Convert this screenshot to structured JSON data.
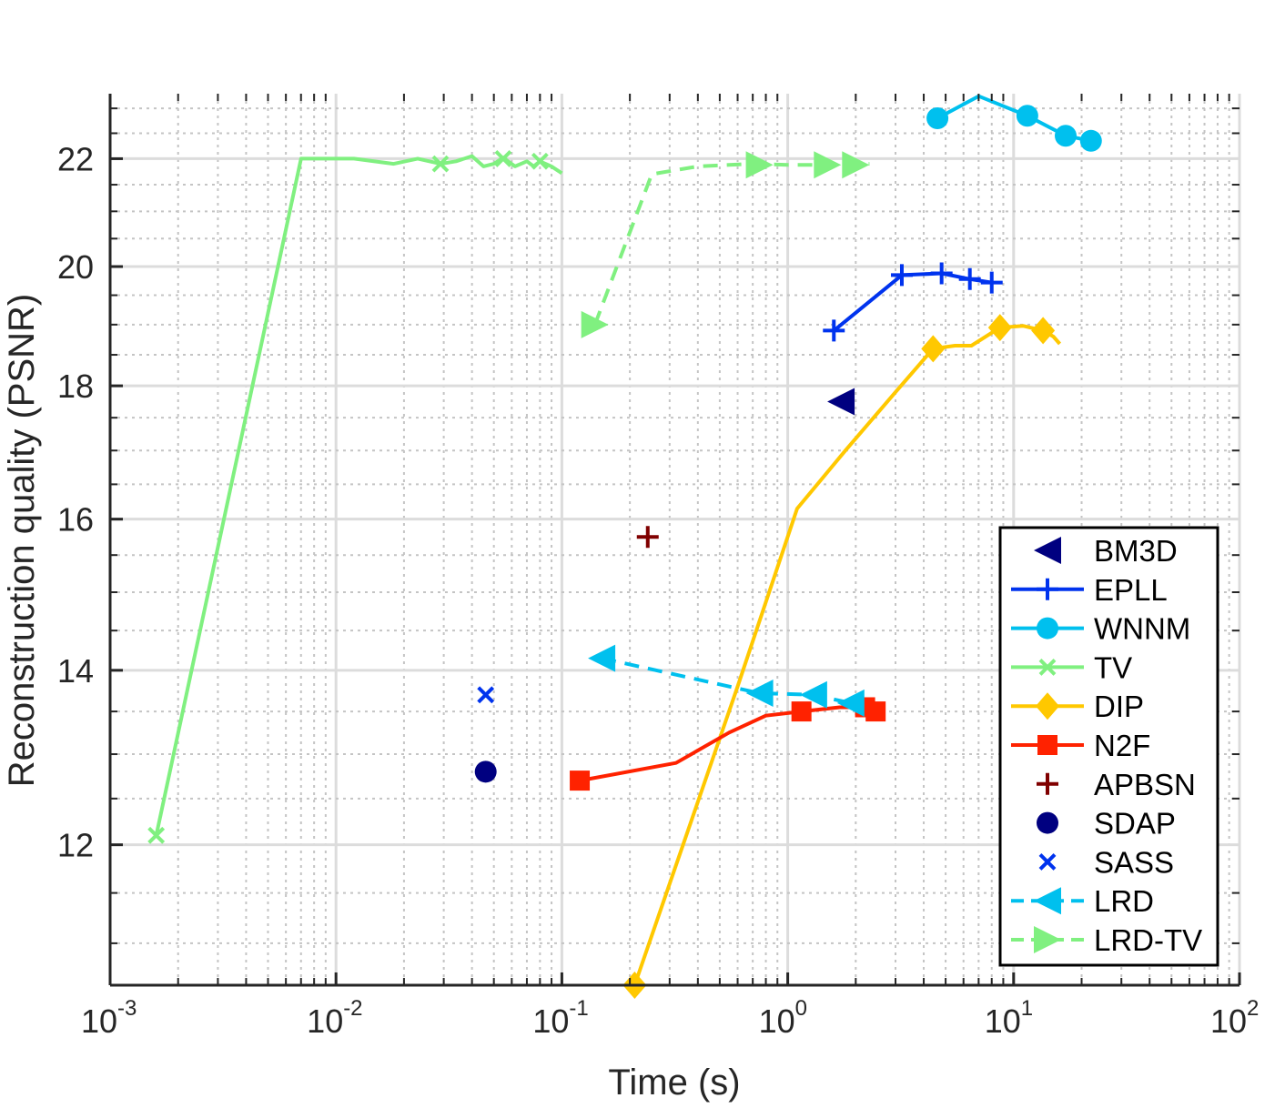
{
  "chart_data": {
    "type": "line",
    "title": "",
    "xlabel": "Time (s)",
    "ylabel": "Reconstruction quality (PSNR)",
    "xscale": "log",
    "yscale": "log",
    "xlim": [
      0.001,
      100
    ],
    "ylim": [
      10.6,
      23.3
    ],
    "xticks": [
      {
        "base": "10",
        "exp": "-3"
      },
      {
        "base": "10",
        "exp": "-2"
      },
      {
        "base": "10",
        "exp": "-1"
      },
      {
        "base": "10",
        "exp": "0"
      },
      {
        "base": "10",
        "exp": "1"
      },
      {
        "base": "10",
        "exp": "2"
      }
    ],
    "yticks": [
      "12",
      "14",
      "16",
      "18",
      "20",
      "22"
    ],
    "grid": true,
    "legend_position": "bottom-right",
    "series": [
      {
        "name": "BM3D",
        "color": "#000080",
        "style": "none",
        "marker": "triangle-left",
        "points": [
          [
            1.72,
            17.75
          ]
        ],
        "marker_points": [
          [
            1.72,
            17.75
          ]
        ]
      },
      {
        "name": "EPLL",
        "color": "#0033ee",
        "style": "solid",
        "marker": "plus",
        "points": [
          [
            1.6,
            18.9
          ],
          [
            3.2,
            19.85
          ],
          [
            4.8,
            19.88
          ],
          [
            6.4,
            19.78
          ],
          [
            8.0,
            19.72
          ]
        ],
        "marker_points": [
          [
            1.6,
            18.9
          ],
          [
            3.2,
            19.85
          ],
          [
            4.8,
            19.88
          ],
          [
            6.4,
            19.78
          ],
          [
            8.0,
            19.72
          ]
        ]
      },
      {
        "name": "WNNM",
        "color": "#00c0ee",
        "style": "solid",
        "marker": "circle",
        "points": [
          [
            4.6,
            22.8
          ],
          [
            7.0,
            23.25
          ],
          [
            11.5,
            22.85
          ],
          [
            17.0,
            22.45
          ],
          [
            22.0,
            22.35
          ]
        ],
        "marker_points": [
          [
            4.6,
            22.8
          ],
          [
            11.5,
            22.85
          ],
          [
            17.0,
            22.45
          ],
          [
            22.0,
            22.35
          ]
        ]
      },
      {
        "name": "TV",
        "color": "#80f080",
        "style": "solid",
        "marker": "x",
        "points": [
          [
            0.0016,
            12.1
          ],
          [
            0.007,
            22.0
          ],
          [
            0.012,
            22.0
          ],
          [
            0.018,
            21.9
          ],
          [
            0.023,
            22.0
          ],
          [
            0.029,
            21.9
          ],
          [
            0.034,
            21.95
          ],
          [
            0.04,
            22.05
          ],
          [
            0.045,
            21.85
          ],
          [
            0.05,
            21.9
          ],
          [
            0.055,
            22.02
          ],
          [
            0.062,
            21.85
          ],
          [
            0.07,
            21.95
          ],
          [
            0.075,
            21.85
          ],
          [
            0.08,
            21.95
          ],
          [
            0.09,
            21.85
          ],
          [
            0.1,
            21.72
          ]
        ],
        "marker_points": [
          [
            0.0016,
            12.1
          ],
          [
            0.029,
            21.9
          ],
          [
            0.055,
            22.0
          ],
          [
            0.08,
            21.95
          ]
        ]
      },
      {
        "name": "DIP",
        "color": "#ffc800",
        "style": "solid",
        "marker": "diamond",
        "points": [
          [
            0.21,
            10.6
          ],
          [
            0.6,
            13.8
          ],
          [
            1.1,
            16.15
          ],
          [
            1.8,
            17.0
          ],
          [
            3.0,
            17.9
          ],
          [
            4.4,
            18.6
          ],
          [
            5.5,
            18.65
          ],
          [
            6.5,
            18.65
          ],
          [
            8.7,
            18.95
          ],
          [
            11.0,
            18.98
          ],
          [
            13.5,
            18.9
          ],
          [
            15.0,
            18.8
          ],
          [
            16.0,
            18.68
          ]
        ],
        "marker_points": [
          [
            0.21,
            10.6
          ],
          [
            4.4,
            18.6
          ],
          [
            8.7,
            18.95
          ],
          [
            13.5,
            18.9
          ]
        ]
      },
      {
        "name": "N2F",
        "color": "#ff2200",
        "style": "solid",
        "marker": "square",
        "points": [
          [
            0.12,
            12.7
          ],
          [
            0.32,
            12.9
          ],
          [
            0.55,
            13.25
          ],
          [
            0.8,
            13.45
          ],
          [
            1.15,
            13.5
          ],
          [
            1.7,
            13.55
          ],
          [
            2.2,
            13.55
          ],
          [
            2.45,
            13.5
          ]
        ],
        "marker_points": [
          [
            0.12,
            12.7
          ],
          [
            1.15,
            13.5
          ],
          [
            2.2,
            13.55
          ],
          [
            2.45,
            13.5
          ]
        ]
      },
      {
        "name": "APBSN",
        "color": "#800000",
        "style": "none",
        "marker": "plus",
        "points": [
          [
            0.24,
            15.75
          ]
        ],
        "marker_points": [
          [
            0.24,
            15.75
          ]
        ]
      },
      {
        "name": "SDAP",
        "color": "#000080",
        "style": "none",
        "marker": "circle",
        "points": [
          [
            0.046,
            12.8
          ]
        ],
        "marker_points": [
          [
            0.046,
            12.8
          ]
        ]
      },
      {
        "name": "SASS",
        "color": "#0033ee",
        "style": "none",
        "marker": "x",
        "points": [
          [
            0.046,
            13.7
          ]
        ],
        "marker_points": [
          [
            0.046,
            13.7
          ]
        ]
      },
      {
        "name": "LRD",
        "color": "#00c0ee",
        "style": "dashed",
        "marker": "triangle-left",
        "points": [
          [
            0.15,
            14.15
          ],
          [
            0.75,
            13.72
          ],
          [
            1.3,
            13.7
          ],
          [
            1.9,
            13.6
          ]
        ],
        "marker_points": [
          [
            0.15,
            14.15
          ],
          [
            0.75,
            13.72
          ],
          [
            1.3,
            13.7
          ],
          [
            1.9,
            13.6
          ]
        ]
      },
      {
        "name": "LRD-TV",
        "color": "#80f080",
        "style": "dashed",
        "marker": "triangle-right",
        "points": [
          [
            0.14,
            19.0
          ],
          [
            0.25,
            21.7
          ],
          [
            0.4,
            21.85
          ],
          [
            0.7,
            21.9
          ],
          [
            1.0,
            21.88
          ],
          [
            1.5,
            21.88
          ],
          [
            2.3,
            21.9
          ]
        ],
        "marker_points": [
          [
            0.14,
            19.0
          ],
          [
            0.75,
            21.88
          ],
          [
            1.5,
            21.88
          ],
          [
            2.0,
            21.88
          ]
        ]
      }
    ]
  }
}
